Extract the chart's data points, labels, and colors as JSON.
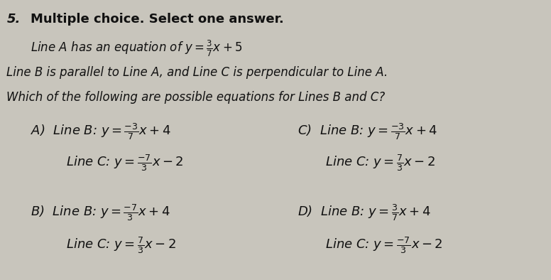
{
  "background_color": "#c8c5bc",
  "text_color": "#111111",
  "fig_width": 7.76,
  "fig_height": 3.94,
  "header_bold": "Multiple choice. Select one answer.",
  "question_num": "5.",
  "line_a": "Line A has an equation of $y = \\frac{3}{7}x + 5$",
  "line_b_info": "Line B is parallel to Line A, and Line C is perpendicular to Line A.",
  "line_which": "Which of the following are possible equations for Lines B and C?",
  "opt_A_label": "A)",
  "opt_A_B": "Line B: $y = \\frac{-3}{7}x + 4$",
  "opt_A_C": "Line C: $y = \\frac{-7}{3}x - 2$",
  "opt_C_label": "C)",
  "opt_C_B": "Line B: $y = \\frac{-3}{7}x + 4$",
  "opt_C_C": "Line C: $y = \\frac{7}{3}x - 2$",
  "opt_B_label": "B)",
  "opt_B_B": "Line B: $y = \\frac{-7}{3}x + 4$",
  "opt_B_C": "Line C: $y = \\frac{7}{3}x - 2$",
  "opt_D_label": "D)",
  "opt_D_B": "Line B: $y = \\frac{3}{7}x + 4$",
  "opt_D_C": "Line C: $y = \\frac{-7}{3}x - 2$",
  "fs_header": 13,
  "fs_body": 12,
  "fs_math": 13
}
